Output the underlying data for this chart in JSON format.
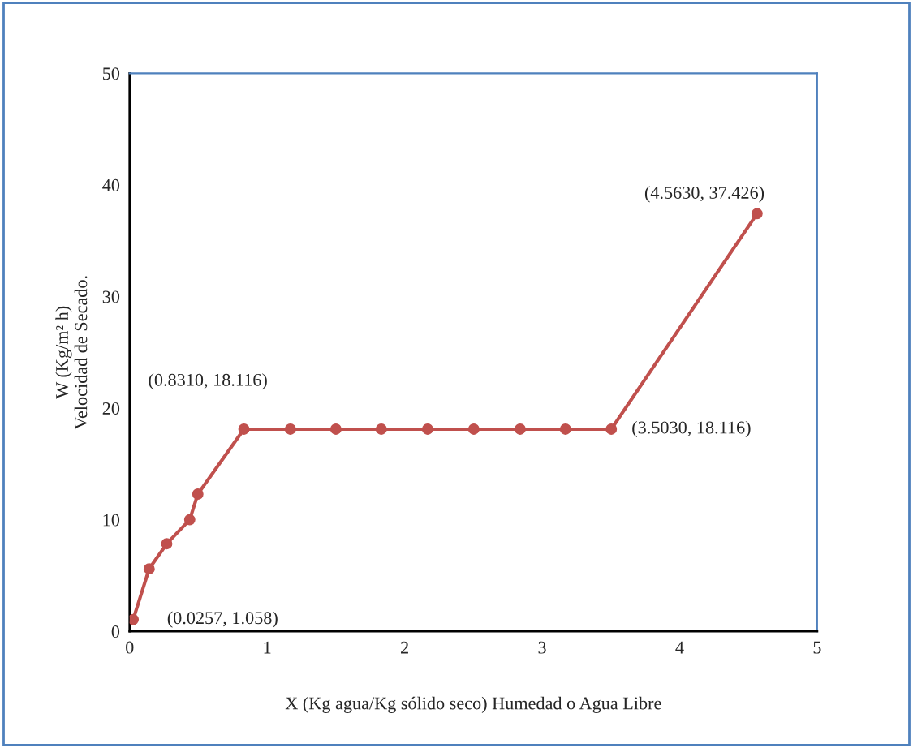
{
  "chart_data": {
    "type": "line",
    "xlabel": "X (Kg agua/Kg sólido seco) Humedad o Agua Libre",
    "ylabel": "W (Kg/m² h)\nVelocidad de Secado.",
    "x": [
      0.0257,
      0.142,
      0.27,
      0.437,
      0.496,
      0.831,
      1.169,
      1.5,
      1.83,
      2.167,
      2.503,
      2.84,
      3.17,
      3.503,
      4.563
    ],
    "series": [
      {
        "color": "#c0504d",
        "values": [
          1.058,
          5.6,
          7.85,
          10.0,
          12.3,
          18.116,
          18.116,
          18.116,
          18.116,
          18.116,
          18.116,
          18.116,
          18.116,
          18.116,
          37.426
        ]
      }
    ],
    "xlim": [
      0,
      5
    ],
    "ylim": [
      0,
      50
    ],
    "xticks": [
      0,
      1,
      2,
      3,
      4,
      5
    ],
    "yticks": [
      0,
      10,
      20,
      30,
      40,
      50
    ],
    "grid": false,
    "marker": "circle",
    "line_style": "solid",
    "annotations": [
      {
        "text": "(0.0257, 1.058)",
        "x": 0.0257,
        "y": 1.058
      },
      {
        "text": "(0.8310, 18.116)",
        "x": 0.831,
        "y": 18.116
      },
      {
        "text": "(3.5030, 18.116)",
        "x": 3.503,
        "y": 18.116
      },
      {
        "text": "(4.5630, 37.426)",
        "x": 4.563,
        "y": 37.426
      }
    ]
  }
}
